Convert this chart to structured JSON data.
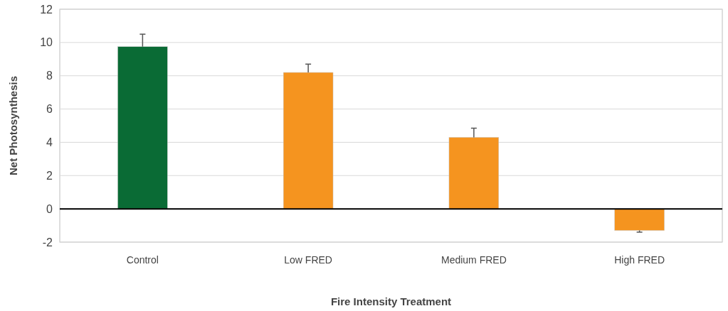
{
  "chart_data": {
    "type": "bar",
    "xlabel": "Fire Intensity Treatment",
    "ylabel": "Net Photosynthesis",
    "categories": [
      "Control",
      "Low FRED",
      "Medium FRED",
      "High FRED"
    ],
    "values": [
      9.75,
      8.2,
      4.3,
      -1.3
    ],
    "colors": [
      "#0a6b35",
      "#f5941f",
      "#f5941f",
      "#f5941f"
    ],
    "errors": [
      0.75,
      0.5,
      0.55,
      0.1
    ],
    "ylim": [
      -2,
      12
    ],
    "yticks": [
      -2,
      0,
      2,
      4,
      6,
      8,
      10,
      12
    ],
    "grid": "y"
  }
}
